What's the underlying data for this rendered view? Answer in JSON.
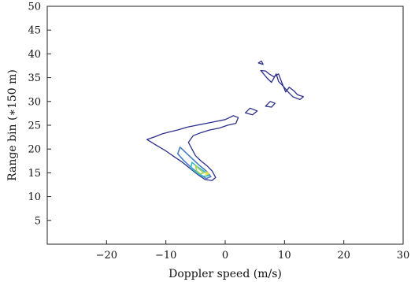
{
  "chart_data": {
    "type": "contour",
    "title": "",
    "xlabel": "Doppler speed (m/s)",
    "ylabel": "Range bin (∗150 m)",
    "xlim": [
      -30,
      30
    ],
    "ylim": [
      0,
      50
    ],
    "xticks": [
      -20,
      -10,
      0,
      10,
      20,
      30
    ],
    "xtick_labels": [
      "−20",
      "−10",
      "0",
      "10",
      "20",
      "30"
    ],
    "yticks": [
      5,
      10,
      15,
      20,
      25,
      30,
      35,
      40,
      45,
      50
    ],
    "ytick_labels": [
      "5",
      "10",
      "15",
      "20",
      "25",
      "30",
      "35",
      "40",
      "45",
      "50"
    ],
    "grid": false,
    "colors": {
      "level_outer": "#2c2f8c",
      "level_2": "#4a7fc1",
      "level_3": "#3fb8c8",
      "level_4": "#9fd35a",
      "level_5": "#f2e22c"
    },
    "contours": [
      {
        "name": "upper-right-strip",
        "level": 1,
        "points": [
          [
            5.6,
            38.1
          ],
          [
            6.4,
            37.8
          ],
          [
            6.1,
            38.5
          ],
          [
            5.6,
            38.1
          ]
        ]
      },
      {
        "name": "upper-right-arm",
        "level": 1,
        "points": [
          [
            6.0,
            36.5
          ],
          [
            7.0,
            35.0
          ],
          [
            7.8,
            34.0
          ],
          [
            8.6,
            35.8
          ],
          [
            9.0,
            34.2
          ],
          [
            9.8,
            33.2
          ],
          [
            10.6,
            32.0
          ],
          [
            11.4,
            31.0
          ],
          [
            12.6,
            30.4
          ],
          [
            13.2,
            31.0
          ],
          [
            12.2,
            31.4
          ],
          [
            11.6,
            32.2
          ],
          [
            10.8,
            33.0
          ],
          [
            10.2,
            32.0
          ],
          [
            9.6,
            33.8
          ],
          [
            9.0,
            35.8
          ],
          [
            8.2,
            35.2
          ],
          [
            7.4,
            35.8
          ],
          [
            6.8,
            36.4
          ],
          [
            6.0,
            36.5
          ]
        ]
      },
      {
        "name": "mid-right-blob",
        "level": 1,
        "points": [
          [
            6.8,
            29.0
          ],
          [
            7.8,
            28.8
          ],
          [
            8.4,
            29.6
          ],
          [
            7.6,
            30.0
          ],
          [
            6.8,
            29.0
          ]
        ]
      },
      {
        "name": "mid-right-blob-2",
        "level": 1,
        "points": [
          [
            3.4,
            27.6
          ],
          [
            4.6,
            27.2
          ],
          [
            5.4,
            28.0
          ],
          [
            4.2,
            28.6
          ],
          [
            3.4,
            27.6
          ]
        ]
      },
      {
        "name": "main-diagonal-band",
        "level": 1,
        "points": [
          [
            -13.2,
            22.0
          ],
          [
            -11.8,
            22.6
          ],
          [
            -10.6,
            23.2
          ],
          [
            -9.4,
            23.6
          ],
          [
            -8.0,
            24.0
          ],
          [
            -6.4,
            24.6
          ],
          [
            -4.8,
            25.0
          ],
          [
            -3.2,
            25.4
          ],
          [
            -1.6,
            25.8
          ],
          [
            0.0,
            26.2
          ],
          [
            1.4,
            27.0
          ],
          [
            2.2,
            26.6
          ],
          [
            1.8,
            25.4
          ],
          [
            0.4,
            25.0
          ],
          [
            -1.0,
            24.4
          ],
          [
            -2.6,
            24.0
          ],
          [
            -4.2,
            23.4
          ],
          [
            -5.4,
            22.8
          ],
          [
            -6.2,
            21.4
          ],
          [
            -5.6,
            20.0
          ],
          [
            -5.0,
            18.6
          ],
          [
            -4.0,
            17.4
          ],
          [
            -3.0,
            16.4
          ],
          [
            -2.2,
            15.4
          ],
          [
            -1.6,
            14.0
          ],
          [
            -2.2,
            13.4
          ],
          [
            -3.4,
            13.6
          ],
          [
            -4.8,
            14.8
          ],
          [
            -6.0,
            16.0
          ],
          [
            -7.2,
            17.2
          ],
          [
            -8.6,
            18.4
          ],
          [
            -10.0,
            19.6
          ],
          [
            -11.6,
            20.8
          ],
          [
            -13.2,
            22.0
          ]
        ]
      },
      {
        "name": "core-level-2",
        "level": 2,
        "points": [
          [
            -7.6,
            20.4
          ],
          [
            -6.6,
            19.2
          ],
          [
            -5.4,
            17.8
          ],
          [
            -4.4,
            16.6
          ],
          [
            -3.2,
            15.4
          ],
          [
            -2.4,
            14.2
          ],
          [
            -3.2,
            13.8
          ],
          [
            -4.6,
            15.0
          ],
          [
            -5.8,
            16.2
          ],
          [
            -7.0,
            17.6
          ],
          [
            -8.0,
            19.0
          ],
          [
            -7.6,
            20.4
          ]
        ]
      },
      {
        "name": "core-level-3",
        "level": 3,
        "points": [
          [
            -5.6,
            17.2
          ],
          [
            -4.6,
            16.2
          ],
          [
            -3.4,
            15.2
          ],
          [
            -2.8,
            14.4
          ],
          [
            -3.8,
            14.2
          ],
          [
            -4.8,
            15.0
          ],
          [
            -5.8,
            16.0
          ],
          [
            -5.6,
            17.2
          ]
        ]
      },
      {
        "name": "core-level-4",
        "level": 4,
        "points": [
          [
            -5.0,
            16.6
          ],
          [
            -4.4,
            15.8
          ],
          [
            -3.6,
            15.0
          ],
          [
            -4.2,
            14.8
          ],
          [
            -4.8,
            15.4
          ],
          [
            -5.0,
            16.6
          ]
        ]
      },
      {
        "name": "core-peak",
        "level": 5,
        "points": [
          [
            -3.2,
            15.2
          ],
          [
            -2.8,
            14.8
          ],
          [
            -3.2,
            14.6
          ],
          [
            -3.2,
            15.2
          ]
        ]
      }
    ]
  }
}
